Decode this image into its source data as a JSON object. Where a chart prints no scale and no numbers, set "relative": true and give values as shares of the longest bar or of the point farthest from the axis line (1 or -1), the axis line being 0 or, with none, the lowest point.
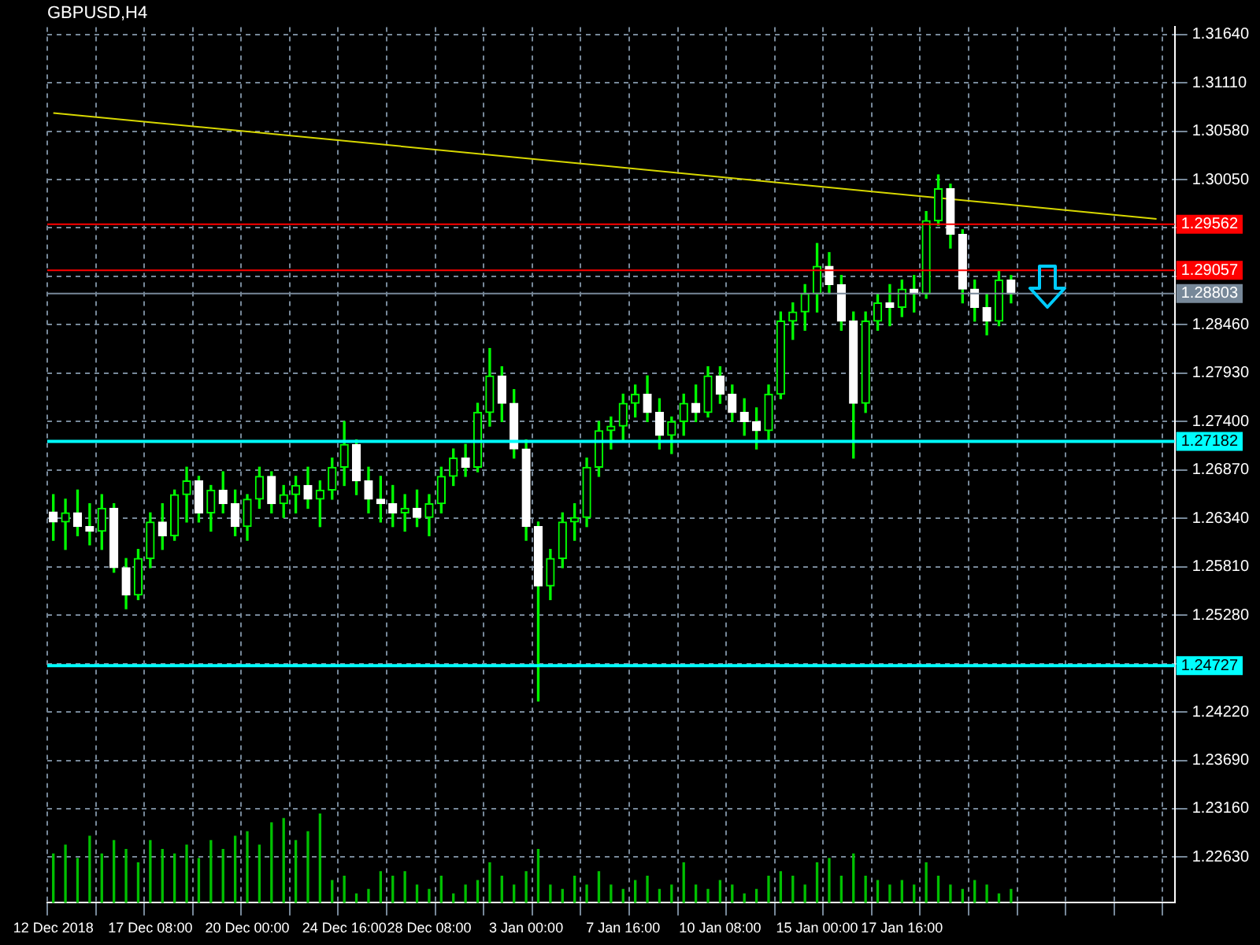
{
  "chart_data": [
    {
      "type": "candlestick",
      "title": "GBPUSD,H4",
      "categories": [
        "12 Dec 2018",
        null,
        null,
        null,
        null,
        null,
        null,
        null,
        "17 Dec 08:00",
        null,
        null,
        null,
        null,
        null,
        null,
        null,
        "20 Dec 00:00",
        null,
        null,
        null,
        null,
        null,
        null,
        null,
        "24 Dec 16:00",
        null,
        null,
        null,
        null,
        null,
        null,
        "28 Dec 08:00",
        null,
        null,
        null,
        null,
        null,
        null,
        null,
        "3 Jan 00:00",
        null,
        null,
        null,
        null,
        null,
        null,
        null,
        "7 Jan 16:00",
        null,
        null,
        null,
        null,
        null,
        null,
        null,
        "10 Jan 08:00",
        null,
        null,
        null,
        null,
        null,
        null,
        null,
        "15 Jan 00:00",
        null,
        null,
        null,
        null,
        null,
        null,
        "17 Jan 16:00",
        null,
        null,
        null,
        null,
        null,
        null,
        null,
        null,
        null,
        null,
        null,
        null,
        null,
        null,
        null,
        null,
        null,
        null,
        null,
        null,
        null,
        null
      ],
      "color": "#00ff00",
      "colors": [
        "#ffffff",
        "#00ff00",
        "#ffffff",
        "#ffffff",
        "#00ff00",
        "#ffffff",
        "#ffffff",
        "#00ff00",
        "#00ff00",
        "#ffffff",
        "#00ff00",
        "#00ff00",
        "#ffffff",
        "#00ff00",
        "#ffffff",
        "#ffffff",
        "#00ff00",
        "#00ff00",
        "#ffffff",
        "#00ff00",
        "#00ff00",
        "#ffffff",
        "#00ff00",
        "#00ff00",
        "#00ff00",
        "#ffffff",
        "#ffffff",
        "#ffffff",
        "#ffffff",
        "#00ff00",
        "#ffffff",
        "#00ff00",
        "#00ff00",
        "#00ff00",
        "#ffffff",
        "#00ff00",
        "#00ff00",
        "#ffffff",
        "#ffffff",
        "#ffffff",
        "#ffffff",
        "#00ff00",
        "#00ff00",
        "#00ff00",
        "#00ff00",
        "#00ff00",
        "#00ff00",
        "#00ff00",
        "#00ff00",
        "#ffffff",
        "#ffffff",
        "#00ff00",
        "#00ff00",
        "#ffffff",
        "#00ff00",
        "#ffffff",
        "#ffffff",
        "#ffffff",
        "#ffffff",
        "#00ff00",
        "#00ff00",
        "#00ff00",
        "#00ff00",
        "#00ff00",
        "#ffffff",
        "#ffffff",
        "#ffffff",
        "#00ff00",
        "#00ff00",
        "#ffffff",
        "#00ff00",
        "#ffffff",
        "#00ff00",
        "#00ff00",
        "#ffffff",
        "#ffffff",
        "#ffffff",
        "#ffffff",
        "#00ff00",
        "#ffffff",
        null,
        null,
        null,
        null,
        null,
        null,
        null,
        null,
        null,
        null,
        null,
        null,
        null
      ],
      "ohlc": [
        [
          1.2641,
          1.266,
          1.261,
          1.263
        ],
        [
          1.263,
          1.2655,
          1.26,
          1.264
        ],
        [
          1.264,
          1.2665,
          1.2615,
          1.2625
        ],
        [
          1.2625,
          1.265,
          1.2605,
          1.262
        ],
        [
          1.262,
          1.266,
          1.26,
          1.2645
        ],
        [
          1.2645,
          1.265,
          1.2575,
          1.258
        ],
        [
          1.258,
          1.259,
          1.2535,
          1.255
        ],
        [
          1.255,
          1.26,
          1.2545,
          1.259
        ],
        [
          1.259,
          1.264,
          1.258,
          1.263
        ],
        [
          1.263,
          1.265,
          1.26,
          1.2615
        ],
        [
          1.2615,
          1.2665,
          1.261,
          1.266
        ],
        [
          1.266,
          1.269,
          1.263,
          1.2675
        ],
        [
          1.2675,
          1.268,
          1.263,
          1.264
        ],
        [
          1.264,
          1.267,
          1.262,
          1.2665
        ],
        [
          1.2665,
          1.2685,
          1.264,
          1.265
        ],
        [
          1.265,
          1.2665,
          1.2615,
          1.2625
        ],
        [
          1.2625,
          1.266,
          1.261,
          1.2655
        ],
        [
          1.2655,
          1.269,
          1.2645,
          1.268
        ],
        [
          1.268,
          1.2685,
          1.264,
          1.265
        ],
        [
          1.265,
          1.267,
          1.2635,
          1.266
        ],
        [
          1.266,
          1.268,
          1.264,
          1.267
        ],
        [
          1.267,
          1.269,
          1.2645,
          1.2655
        ],
        [
          1.2655,
          1.2675,
          1.2625,
          1.2665
        ],
        [
          1.2665,
          1.27,
          1.2655,
          1.269
        ],
        [
          1.269,
          1.274,
          1.267,
          1.2715
        ],
        [
          1.2715,
          1.272,
          1.266,
          1.2675
        ],
        [
          1.2675,
          1.269,
          1.264,
          1.2655
        ],
        [
          1.2655,
          1.268,
          1.263,
          1.265
        ],
        [
          1.265,
          1.267,
          1.2625,
          1.264
        ],
        [
          1.264,
          1.266,
          1.262,
          1.2645
        ],
        [
          1.2645,
          1.2665,
          1.2625,
          1.2635
        ],
        [
          1.2635,
          1.266,
          1.2615,
          1.265
        ],
        [
          1.265,
          1.269,
          1.264,
          1.268
        ],
        [
          1.268,
          1.271,
          1.267,
          1.27
        ],
        [
          1.27,
          1.2715,
          1.268,
          1.269
        ],
        [
          1.269,
          1.276,
          1.2685,
          1.275
        ],
        [
          1.275,
          1.282,
          1.2735,
          1.279
        ],
        [
          1.279,
          1.28,
          1.274,
          1.276
        ],
        [
          1.276,
          1.2775,
          1.27,
          1.271
        ],
        [
          1.271,
          1.272,
          1.261,
          1.2625
        ],
        [
          1.2625,
          1.263,
          1.2434,
          1.256
        ],
        [
          1.256,
          1.26,
          1.2545,
          1.259
        ],
        [
          1.259,
          1.264,
          1.258,
          1.263
        ],
        [
          1.263,
          1.265,
          1.261,
          1.2635
        ],
        [
          1.2635,
          1.27,
          1.2625,
          1.269
        ],
        [
          1.269,
          1.274,
          1.268,
          1.273
        ],
        [
          1.273,
          1.2745,
          1.271,
          1.2735
        ],
        [
          1.2735,
          1.277,
          1.272,
          1.276
        ],
        [
          1.276,
          1.278,
          1.2745,
          1.277
        ],
        [
          1.277,
          1.279,
          1.274,
          1.275
        ],
        [
          1.275,
          1.2765,
          1.271,
          1.2725
        ],
        [
          1.2725,
          1.2745,
          1.2705,
          1.274
        ],
        [
          1.274,
          1.277,
          1.2725,
          1.276
        ],
        [
          1.276,
          1.278,
          1.274,
          1.275
        ],
        [
          1.275,
          1.28,
          1.2745,
          1.279
        ],
        [
          1.279,
          1.28,
          1.276,
          1.277
        ],
        [
          1.277,
          1.278,
          1.274,
          1.275
        ],
        [
          1.275,
          1.2765,
          1.2725,
          1.274
        ],
        [
          1.274,
          1.2755,
          1.271,
          1.273
        ],
        [
          1.273,
          1.278,
          1.272,
          1.277
        ],
        [
          1.277,
          1.286,
          1.2765,
          1.285
        ],
        [
          1.285,
          1.287,
          1.283,
          1.286
        ],
        [
          1.286,
          1.289,
          1.284,
          1.288
        ],
        [
          1.288,
          1.2935,
          1.286,
          1.291
        ],
        [
          1.291,
          1.2925,
          1.288,
          1.289
        ],
        [
          1.289,
          1.29,
          1.284,
          1.285
        ],
        [
          1.285,
          1.286,
          1.27,
          1.276
        ],
        [
          1.276,
          1.286,
          1.275,
          1.285
        ],
        [
          1.285,
          1.288,
          1.284,
          1.287
        ],
        [
          1.287,
          1.289,
          1.2845,
          1.2865
        ],
        [
          1.2865,
          1.2895,
          1.2855,
          1.2885
        ],
        [
          1.2885,
          1.29,
          1.286,
          1.288
        ],
        [
          1.288,
          1.297,
          1.2875,
          1.296
        ],
        [
          1.296,
          1.301,
          1.2955,
          1.2995
        ],
        [
          1.2995,
          1.3,
          1.293,
          1.2945
        ],
        [
          1.2945,
          1.295,
          1.287,
          1.2885
        ],
        [
          1.2885,
          1.2895,
          1.285,
          1.2865
        ],
        [
          1.2865,
          1.288,
          1.2835,
          1.285
        ],
        [
          1.285,
          1.2905,
          1.2845,
          1.2895
        ],
        [
          1.2895,
          1.29,
          1.287,
          1.288
        ],
        null,
        null,
        null,
        null,
        null,
        null,
        null,
        null,
        null,
        null,
        null,
        null,
        null
      ],
      "series": [
        {
          "type": "line",
          "color": "#d8d800",
          "values": [
            1.3078,
            null,
            null,
            null,
            null,
            null,
            null,
            null,
            null,
            null,
            null,
            null,
            null,
            null,
            null,
            null,
            null,
            null,
            null,
            null,
            null,
            null,
            null,
            null,
            null,
            null,
            null,
            null,
            null,
            null,
            null,
            null,
            null,
            null,
            null,
            null,
            null,
            null,
            null,
            null,
            null,
            null,
            null,
            null,
            null,
            null,
            null,
            null,
            null,
            null,
            null,
            null,
            null,
            null,
            null,
            null,
            null,
            null,
            null,
            null,
            null,
            null,
            null,
            null,
            null,
            null,
            null,
            null,
            null,
            null,
            null,
            null,
            null,
            null,
            null,
            null,
            null,
            null,
            null,
            null,
            null,
            null,
            null,
            null,
            null,
            null,
            null,
            null,
            null,
            null,
            null,
            1.2962,
            null
          ]
        }
      ],
      "ylim": [
        1.2213,
        1.3172
      ],
      "yticks": [
        {
          "value": 1.3164,
          "label": "1.31640"
        },
        {
          "value": 1.3111,
          "label": "1.31110"
        },
        {
          "value": 1.3058,
          "label": "1.30580"
        },
        {
          "value": 1.3005,
          "label": "1.30050"
        },
        {
          "value": 1.2952,
          "label": null
        },
        {
          "value": 1.2899,
          "label": null
        },
        {
          "value": 1.2846,
          "label": "1.28460"
        },
        {
          "value": 1.2793,
          "label": "1.27930"
        },
        {
          "value": 1.274,
          "label": "1.27400"
        },
        {
          "value": 1.2687,
          "label": "1.26870"
        },
        {
          "value": 1.2634,
          "label": "1.26340"
        },
        {
          "value": 1.2581,
          "label": "1.25810"
        },
        {
          "value": 1.2528,
          "label": "1.25280"
        },
        {
          "value": 1.2475,
          "label": null
        },
        {
          "value": 1.2422,
          "label": "1.24220"
        },
        {
          "value": 1.2369,
          "label": "1.23690"
        },
        {
          "value": 1.2316,
          "label": "1.23160"
        },
        {
          "value": 1.2263,
          "label": "1.22630"
        }
      ],
      "ref_lines": [
        {
          "axis": "y",
          "value": 1.29562,
          "label": "1.29562",
          "color": "#ff0000"
        },
        {
          "axis": "y",
          "value": 1.29057,
          "label": "1.29057",
          "color": "#ff0000"
        },
        {
          "axis": "y",
          "value": 1.28803,
          "label": "1.28803",
          "color": "#778899"
        },
        {
          "axis": "y",
          "value": 1.27182,
          "label": "1.27182",
          "color": "#00ffff"
        },
        {
          "axis": "y",
          "value": 1.24727,
          "label": "1.24727",
          "color": "#00ffff"
        }
      ],
      "grid": true,
      "legend": false
    },
    {
      "type": "bar",
      "relative": true,
      "color": "#00c000",
      "categories": [
        null,
        null,
        null,
        null,
        null,
        null,
        null,
        null,
        null,
        null,
        null,
        null,
        null,
        null,
        null,
        null,
        null,
        null,
        null,
        null,
        null,
        null,
        null,
        null,
        null,
        null,
        null,
        null,
        null,
        null,
        null,
        null,
        null,
        null,
        null,
        null,
        null,
        null,
        null,
        null,
        null,
        null,
        null,
        null,
        null,
        null,
        null,
        null,
        null,
        null,
        null,
        null,
        null,
        null,
        null,
        null,
        null,
        null,
        null,
        null,
        null,
        null,
        null,
        null,
        null,
        null,
        null,
        null,
        null,
        null,
        null,
        null,
        null,
        null,
        null,
        null,
        null,
        null,
        null,
        null,
        null,
        null,
        null,
        null,
        null,
        null,
        null,
        null,
        null,
        null,
        null,
        null,
        null
      ],
      "values": [
        0.55,
        0.65,
        0.5,
        0.75,
        0.55,
        0.7,
        0.6,
        0.45,
        0.7,
        0.6,
        0.55,
        0.65,
        0.5,
        0.7,
        0.6,
        0.75,
        0.8,
        0.65,
        0.9,
        0.95,
        0.7,
        0.8,
        1.0,
        0.25,
        0.3,
        0.1,
        0.15,
        0.35,
        0.3,
        0.35,
        0.2,
        0.15,
        0.3,
        0.1,
        0.2,
        0.25,
        0.45,
        0.3,
        0.2,
        0.35,
        0.6,
        0.2,
        0.15,
        0.3,
        0.2,
        0.35,
        0.2,
        0.15,
        0.25,
        0.3,
        0.15,
        0.2,
        0.45,
        0.2,
        0.15,
        0.25,
        0.2,
        0.1,
        0.15,
        0.3,
        0.35,
        0.3,
        0.2,
        0.45,
        0.5,
        0.3,
        0.55,
        0.3,
        0.25,
        0.2,
        0.25,
        0.2,
        0.45,
        0.3,
        0.2,
        0.15,
        0.25,
        0.2,
        0.1,
        0.15,
        null,
        null,
        null,
        null,
        null,
        null,
        null,
        null,
        null,
        null,
        null,
        null,
        null
      ]
    }
  ]
}
